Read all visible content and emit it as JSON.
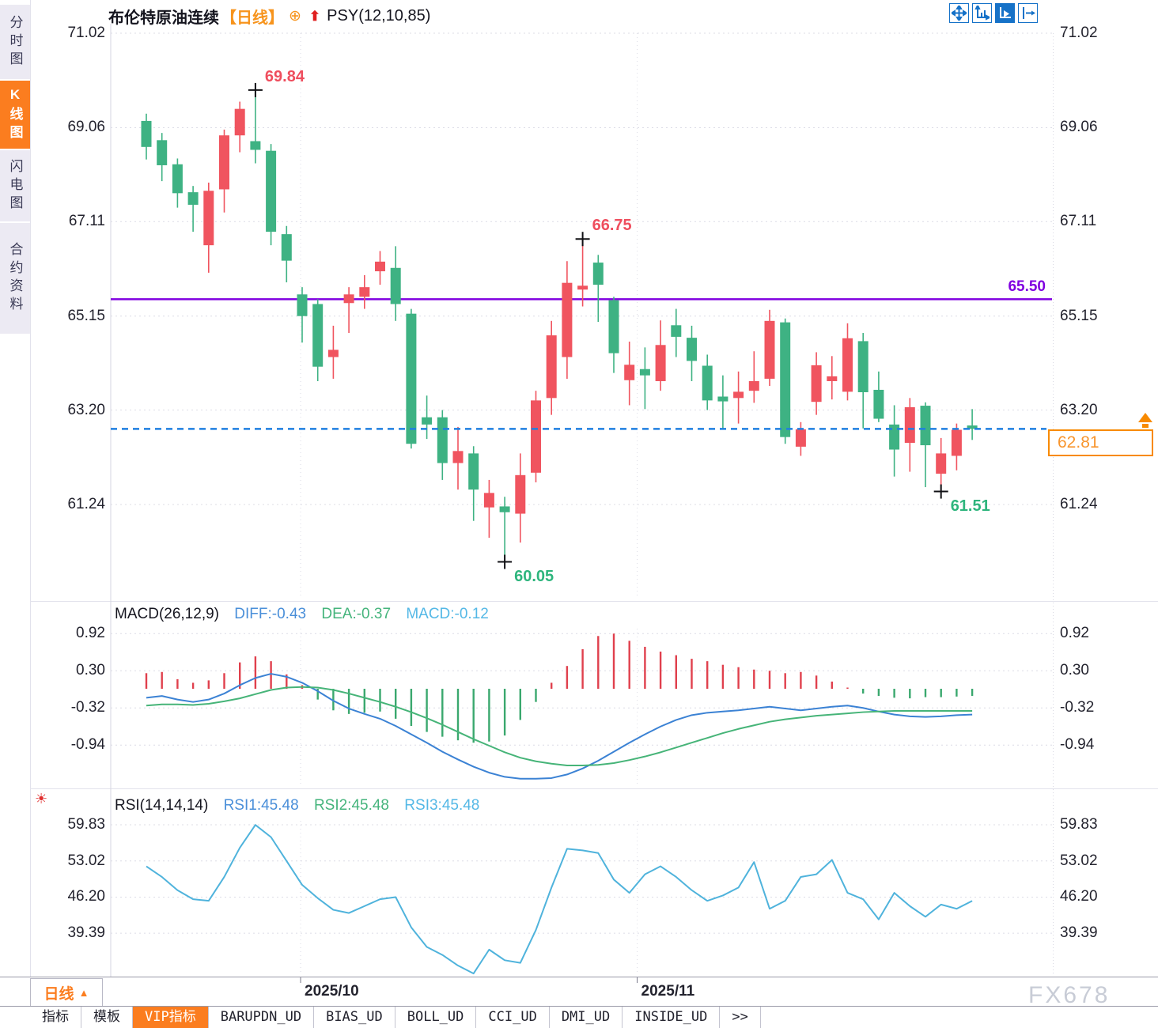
{
  "app": {
    "watermark": "FX678"
  },
  "sidebar": {
    "tabs": [
      {
        "label": "分时图",
        "active": false
      },
      {
        "label": "K线图",
        "active": true
      },
      {
        "label": "闪电图",
        "active": false
      },
      {
        "label": "合约资料",
        "active": false
      }
    ]
  },
  "header": {
    "title": "布伦特原油连续",
    "period_tag": "【日线】",
    "add_icon": "⊕",
    "arrow_icon": "⬆",
    "indicator_label": "PSY(12,10,85)"
  },
  "price_panel": {
    "y_axis_labels": [
      "71.02",
      "69.06",
      "67.11",
      "65.15",
      "63.20",
      "61.24"
    ],
    "purple_level_label": "65.50",
    "current_price": "62.81",
    "annotations": [
      {
        "label": "69.84",
        "index": 7,
        "price": 69.84,
        "side": "high",
        "color": "#ef4e5e"
      },
      {
        "label": "66.75",
        "index": 28,
        "price": 66.75,
        "side": "high",
        "color": "#ef4e5e"
      },
      {
        "label": "60.05",
        "index": 23,
        "price": 60.05,
        "side": "low",
        "color": "#2eb57d"
      },
      {
        "label": "61.51",
        "index": 51,
        "price": 61.51,
        "side": "low",
        "color": "#2eb57d"
      }
    ]
  },
  "macd_panel": {
    "title": "MACD(26,12,9)",
    "diff_label": "DIFF:-0.43",
    "dea_label": "DEA:-0.37",
    "macd_label": "MACD:-0.12",
    "y_axis_labels": [
      "0.92",
      "0.30",
      "-0.32",
      "-0.94"
    ]
  },
  "rsi_panel": {
    "title": "RSI(14,14,14)",
    "rsi1_label": "RSI1:45.48",
    "rsi2_label": "RSI2:45.48",
    "rsi3_label": "RSI3:45.48",
    "y_axis_labels": [
      "59.83",
      "53.02",
      "46.20",
      "39.39"
    ]
  },
  "bottom_axis": {
    "period_button_label": "日线",
    "period_button_arrow": "▲"
  },
  "tab_bar": {
    "tabs": [
      {
        "label": "指标",
        "active": false
      },
      {
        "label": "模板",
        "active": false
      },
      {
        "label": "VIP指标",
        "active": true
      },
      {
        "label": "BARUPDN_UD",
        "active": false
      },
      {
        "label": "BIAS_UD",
        "active": false
      },
      {
        "label": "BOLL_UD",
        "active": false
      },
      {
        "label": "CCI_UD",
        "active": false
      },
      {
        "label": "DMI_UD",
        "active": false
      },
      {
        "label": "INSIDE_UD",
        "active": false
      },
      {
        "label": ">>",
        "active": false
      }
    ]
  },
  "colors": {
    "up": "#f0545f",
    "down": "#3eb283",
    "hist_up": "#e0404d",
    "hist_down": "#3aa86e",
    "diff_blue": "#3b82d4",
    "dea_green": "#46b478",
    "rsi_line": "#4fb3dc",
    "purple_line": "#8000e0",
    "current_line": "#1f7fe0",
    "accent_orange": "#fb7d1f",
    "grid": "#dcdce6",
    "cross": "#101014"
  },
  "chart_data": {
    "type": "candlestick",
    "title": "布伦特原油连续 日线",
    "indicator_overlays": [
      "PSY(12,10,85)",
      "MACD(26,12,9)",
      "RSI(14,14,14)"
    ],
    "price_axis": [
      71.02,
      69.06,
      67.11,
      65.15,
      63.2,
      61.24
    ],
    "levels": {
      "purple_line": 65.5,
      "current_price": 62.81
    },
    "months": [
      {
        "label": "2025/10",
        "index": 9.9
      },
      {
        "label": "2025/11",
        "index": 31.5
      }
    ],
    "candles_ochl": [
      [
        69.2,
        68.66,
        69.35,
        68.4
      ],
      [
        68.8,
        68.28,
        68.95,
        67.95
      ],
      [
        68.3,
        67.7,
        68.42,
        67.4
      ],
      [
        67.72,
        67.46,
        67.85,
        66.9
      ],
      [
        66.62,
        67.75,
        67.92,
        66.05
      ],
      [
        67.78,
        68.9,
        69.02,
        67.3
      ],
      [
        68.9,
        69.45,
        69.6,
        68.55
      ],
      [
        68.78,
        68.6,
        69.84,
        68.32
      ],
      [
        68.58,
        66.9,
        68.72,
        66.62
      ],
      [
        66.85,
        66.3,
        67.02,
        65.85
      ],
      [
        65.6,
        65.15,
        65.75,
        64.6
      ],
      [
        65.4,
        64.1,
        65.5,
        63.8
      ],
      [
        64.3,
        64.45,
        64.95,
        63.85
      ],
      [
        65.42,
        65.6,
        65.75,
        64.8
      ],
      [
        65.55,
        65.75,
        66.0,
        65.3
      ],
      [
        66.08,
        66.28,
        66.5,
        65.8
      ],
      [
        66.15,
        65.4,
        66.6,
        65.05
      ],
      [
        65.2,
        62.5,
        65.3,
        62.4
      ],
      [
        63.05,
        62.9,
        63.5,
        62.6
      ],
      [
        63.05,
        62.1,
        63.2,
        61.75
      ],
      [
        62.1,
        62.35,
        62.85,
        61.55
      ],
      [
        62.3,
        61.55,
        62.45,
        60.9
      ],
      [
        61.18,
        61.48,
        61.75,
        60.55
      ],
      [
        61.2,
        61.08,
        61.4,
        60.05
      ],
      [
        61.05,
        61.85,
        62.3,
        60.45
      ],
      [
        61.9,
        63.4,
        63.6,
        61.7
      ],
      [
        63.45,
        64.75,
        65.05,
        63.1
      ],
      [
        64.3,
        65.84,
        66.29,
        63.85
      ],
      [
        65.7,
        65.78,
        66.75,
        65.35
      ],
      [
        66.26,
        65.8,
        66.42,
        65.03
      ],
      [
        65.48,
        64.38,
        65.55,
        63.97
      ],
      [
        63.82,
        64.14,
        64.62,
        63.3
      ],
      [
        64.05,
        63.92,
        64.5,
        63.22
      ],
      [
        63.8,
        64.55,
        65.06,
        63.6
      ],
      [
        64.96,
        64.72,
        65.3,
        64.3
      ],
      [
        64.7,
        64.22,
        64.95,
        63.8
      ],
      [
        64.12,
        63.4,
        64.35,
        63.2
      ],
      [
        63.48,
        63.38,
        63.92,
        62.8
      ],
      [
        63.45,
        63.58,
        64.0,
        62.92
      ],
      [
        63.6,
        63.8,
        64.42,
        63.35
      ],
      [
        63.85,
        65.05,
        65.28,
        63.7
      ],
      [
        65.02,
        62.64,
        65.1,
        62.5
      ],
      [
        62.44,
        62.8,
        62.95,
        62.25
      ],
      [
        63.37,
        64.13,
        64.4,
        63.1
      ],
      [
        63.8,
        63.9,
        64.32,
        63.42
      ],
      [
        63.58,
        64.69,
        65.0,
        63.4
      ],
      [
        64.63,
        63.57,
        64.8,
        62.82
      ],
      [
        63.62,
        63.02,
        64.0,
        62.95
      ],
      [
        62.9,
        62.38,
        63.3,
        61.82
      ],
      [
        62.52,
        63.26,
        63.45,
        61.92
      ],
      [
        63.29,
        62.47,
        63.36,
        61.6
      ],
      [
        61.88,
        62.3,
        62.62,
        61.51
      ],
      [
        62.25,
        62.79,
        62.92,
        61.95
      ],
      [
        62.88,
        62.81,
        63.22,
        62.58
      ]
    ],
    "macd": {
      "axis": [
        0.92,
        0.3,
        -0.32,
        -0.94
      ],
      "hist": [
        0.26,
        0.28,
        0.16,
        0.1,
        0.14,
        0.26,
        0.44,
        0.54,
        0.46,
        0.24,
        0.06,
        -0.18,
        -0.36,
        -0.42,
        -0.4,
        -0.38,
        -0.5,
        -0.62,
        -0.72,
        -0.8,
        -0.86,
        -0.9,
        -0.88,
        -0.78,
        -0.52,
        -0.22,
        0.1,
        0.38,
        0.66,
        0.88,
        0.92,
        0.8,
        0.7,
        0.62,
        0.56,
        0.5,
        0.46,
        0.4,
        0.36,
        0.32,
        0.3,
        0.26,
        0.28,
        0.22,
        0.12,
        0.02,
        -0.08,
        -0.12,
        -0.15,
        -0.16,
        -0.14,
        -0.14,
        -0.13,
        -0.12
      ],
      "diff": [
        -0.15,
        -0.12,
        -0.18,
        -0.22,
        -0.18,
        -0.08,
        0.06,
        0.18,
        0.25,
        0.2,
        0.1,
        -0.04,
        -0.2,
        -0.33,
        -0.42,
        -0.5,
        -0.62,
        -0.76,
        -0.9,
        -1.05,
        -1.18,
        -1.3,
        -1.4,
        -1.47,
        -1.5,
        -1.5,
        -1.49,
        -1.43,
        -1.33,
        -1.2,
        -1.05,
        -0.9,
        -0.76,
        -0.63,
        -0.52,
        -0.44,
        -0.4,
        -0.38,
        -0.36,
        -0.33,
        -0.3,
        -0.33,
        -0.36,
        -0.33,
        -0.3,
        -0.28,
        -0.32,
        -0.38,
        -0.43,
        -0.46,
        -0.47,
        -0.46,
        -0.44,
        -0.43
      ],
      "dea": [
        -0.28,
        -0.26,
        -0.26,
        -0.27,
        -0.25,
        -0.21,
        -0.16,
        -0.09,
        -0.02,
        0.02,
        0.03,
        0.02,
        -0.02,
        -0.08,
        -0.15,
        -0.22,
        -0.3,
        -0.39,
        -0.49,
        -0.6,
        -0.72,
        -0.84,
        -0.95,
        -1.06,
        -1.15,
        -1.21,
        -1.25,
        -1.28,
        -1.28,
        -1.27,
        -1.24,
        -1.19,
        -1.13,
        -1.06,
        -0.98,
        -0.9,
        -0.82,
        -0.74,
        -0.67,
        -0.61,
        -0.55,
        -0.51,
        -0.48,
        -0.45,
        -0.43,
        -0.41,
        -0.39,
        -0.38,
        -0.37,
        -0.37,
        -0.37,
        -0.37,
        -0.37,
        -0.37
      ]
    },
    "rsi": {
      "axis": [
        59.83,
        53.02,
        46.2,
        39.39
      ],
      "values": [
        52.0,
        50.0,
        47.5,
        45.8,
        45.5,
        50.0,
        55.5,
        59.8,
        57.5,
        53.0,
        48.5,
        46.0,
        43.8,
        43.2,
        44.5,
        45.8,
        46.2,
        40.5,
        36.8,
        35.3,
        33.3,
        31.8,
        36.3,
        34.3,
        33.8,
        40.0,
        48.0,
        55.3,
        55.0,
        54.5,
        49.5,
        47.0,
        50.5,
        52.0,
        50.0,
        47.5,
        45.5,
        46.5,
        48.0,
        52.8,
        44.0,
        45.5,
        50.0,
        50.5,
        53.2,
        47.0,
        45.8,
        42.0,
        47.0,
        44.5,
        42.5,
        44.8,
        44.0,
        45.48
      ]
    }
  }
}
